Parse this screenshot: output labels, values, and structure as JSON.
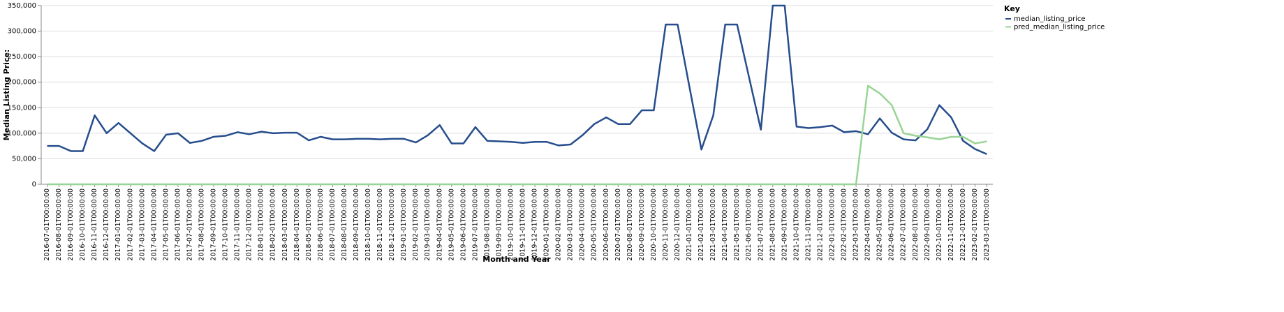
{
  "chart_data": {
    "type": "line",
    "xlabel": "Month and Year",
    "ylabel": "Median Listing Price:",
    "legend_title": "Key",
    "legend_position": "right",
    "grid": true,
    "categories": [
      "2016-07-01T00:00:00",
      "2016-08-01T00:00:00",
      "2016-09-01T00:00:00",
      "2016-10-01T00:00:00",
      "2016-11-01T00:00:00",
      "2016-12-01T00:00:00",
      "2017-01-01T00:00:00",
      "2017-02-01T00:00:00",
      "2017-03-01T00:00:00",
      "2017-04-01T00:00:00",
      "2017-05-01T00:00:00",
      "2017-06-01T00:00:00",
      "2017-07-01T00:00:00",
      "2017-08-01T00:00:00",
      "2017-09-01T00:00:00",
      "2017-10-01T00:00:00",
      "2017-11-01T00:00:00",
      "2017-12-01T00:00:00",
      "2018-01-01T00:00:00",
      "2018-02-01T00:00:00",
      "2018-03-01T00:00:00",
      "2018-04-01T00:00:00",
      "2018-05-01T00:00:00",
      "2018-06-01T00:00:00",
      "2018-07-01T00:00:00",
      "2018-08-01T00:00:00",
      "2018-09-01T00:00:00",
      "2018-10-01T00:00:00",
      "2018-11-01T00:00:00",
      "2018-12-01T00:00:00",
      "2019-01-01T00:00:00",
      "2019-02-01T00:00:00",
      "2019-03-01T00:00:00",
      "2019-04-01T00:00:00",
      "2019-05-01T00:00:00",
      "2019-06-01T00:00:00",
      "2019-07-01T00:00:00",
      "2019-08-01T00:00:00",
      "2019-09-01T00:00:00",
      "2019-10-01T00:00:00",
      "2019-11-01T00:00:00",
      "2019-12-01T00:00:00",
      "2020-01-01T00:00:00",
      "2020-02-01T00:00:00",
      "2020-03-01T00:00:00",
      "2020-04-01T00:00:00",
      "2020-05-01T00:00:00",
      "2020-06-01T00:00:00",
      "2020-07-01T00:00:00",
      "2020-08-01T00:00:00",
      "2020-09-01T00:00:00",
      "2020-10-01T00:00:00",
      "2020-11-01T00:00:00",
      "2020-12-01T00:00:00",
      "2021-01-01T00:00:00",
      "2021-02-01T00:00:00",
      "2021-03-01T00:00:00",
      "2021-04-01T00:00:00",
      "2021-05-01T00:00:00",
      "2021-06-01T00:00:00",
      "2021-07-01T00:00:00",
      "2021-08-01T00:00:00",
      "2021-09-01T00:00:00",
      "2021-10-01T00:00:00",
      "2021-11-01T00:00:00",
      "2021-12-01T00:00:00",
      "2022-01-01T00:00:00",
      "2022-02-01T00:00:00",
      "2022-03-01T00:00:00",
      "2022-04-01T00:00:00",
      "2022-05-01T00:00:00",
      "2022-06-01T00:00:00",
      "2022-07-01T00:00:00",
      "2022-08-01T00:00:00",
      "2022-09-01T00:00:00",
      "2022-10-01T00:00:00",
      "2022-11-01T00:00:00",
      "2022-12-01T00:00:00",
      "2023-02-01T00:00:00",
      "2023-03-01T00:00:00"
    ],
    "series": [
      {
        "name": "median_listing_price",
        "color": "#264d8c",
        "values": [
          75000,
          75000,
          65000,
          65000,
          135000,
          100000,
          120000,
          100000,
          80000,
          65000,
          97000,
          100000,
          81000,
          85000,
          93000,
          95000,
          102000,
          98000,
          103000,
          100000,
          101000,
          101000,
          86000,
          93000,
          88000,
          88000,
          89000,
          89000,
          88000,
          89000,
          89000,
          82000,
          96000,
          116000,
          80000,
          80000,
          112000,
          85000,
          84000,
          83000,
          81000,
          83000,
          83000,
          76000,
          78000,
          96000,
          118000,
          131000,
          118000,
          118000,
          145000,
          145000,
          313000,
          313000,
          190000,
          68000,
          135000,
          313000,
          313000,
          210000,
          107000,
          350000,
          350000,
          113000,
          110000,
          112000,
          115000,
          102000,
          104000,
          98000,
          129000,
          101000,
          88000,
          86000,
          108000,
          155000,
          131000,
          85000,
          69000,
          59000
        ]
      },
      {
        "name": "pred_median_listing_price",
        "color": "#98d594",
        "values": [
          0,
          0,
          0,
          0,
          0,
          0,
          0,
          0,
          0,
          0,
          0,
          0,
          0,
          0,
          0,
          0,
          0,
          0,
          0,
          0,
          0,
          0,
          0,
          0,
          0,
          0,
          0,
          0,
          0,
          0,
          0,
          0,
          0,
          0,
          0,
          0,
          0,
          0,
          0,
          0,
          0,
          0,
          0,
          0,
          0,
          0,
          0,
          0,
          0,
          0,
          0,
          0,
          0,
          0,
          0,
          0,
          0,
          0,
          0,
          0,
          0,
          0,
          0,
          0,
          0,
          0,
          0,
          0,
          0,
          193000,
          178000,
          155000,
          100000,
          95000,
          92000,
          88000,
          93000,
          93000,
          80000,
          84000
        ]
      }
    ],
    "ylim": [
      0,
      350000
    ],
    "yticks": [
      0,
      {
        "value": 50000,
        "label": "50,000"
      },
      {
        "value": 100000,
        "label": "100,000"
      },
      {
        "value": 150000,
        "label": "150,000"
      },
      {
        "value": 200000,
        "label": "200,000"
      },
      {
        "value": 250000,
        "label": "250,000"
      },
      {
        "value": 300000,
        "label": "300,000"
      },
      {
        "value": 350000,
        "label": "350,000"
      }
    ]
  }
}
